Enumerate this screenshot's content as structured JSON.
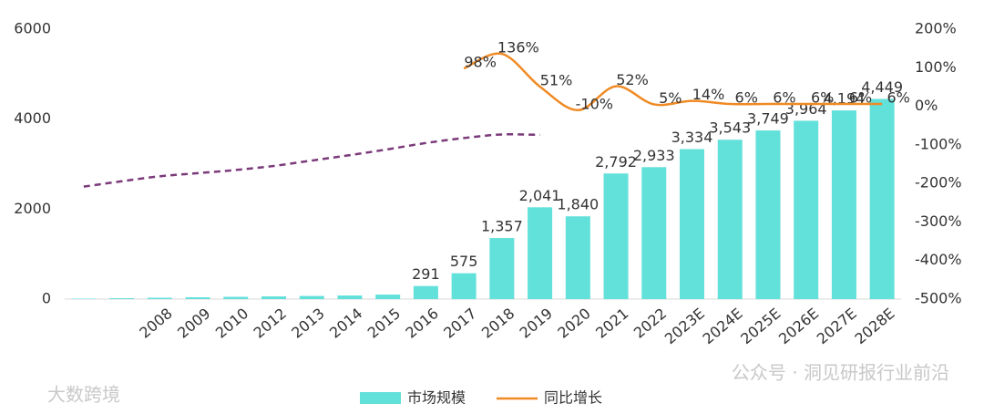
{
  "chart_data": {
    "type": "bar",
    "categories": [
      null,
      null,
      "2008",
      "2009",
      "2010",
      "2012",
      "2013",
      "2014",
      "2015",
      "2016",
      "2017",
      "2018",
      "2019",
      "2020",
      "2021",
      "2022",
      "2023E",
      "2024E",
      "2025E",
      "2026E",
      "2027E",
      "2028E"
    ],
    "series": [
      {
        "name": "市场规模",
        "type": "bar",
        "color": "#62e0da",
        "values": [
          10,
          20,
          30,
          40,
          50,
          60,
          70,
          80,
          100,
          291,
          575,
          1357,
          2041,
          1840,
          2792,
          2933,
          3334,
          3543,
          3749,
          3964,
          4194,
          4449
        ],
        "value_labels": [
          null,
          null,
          null,
          null,
          null,
          null,
          null,
          null,
          null,
          "291",
          "575",
          "1,357",
          "2,041",
          "1,840",
          "2,792",
          "2,933",
          "3,334",
          "3,543",
          "3,749",
          "3,964",
          "4,194",
          "4,449"
        ]
      },
      {
        "name": "同比增长",
        "type": "line",
        "axis": "y2",
        "color": "#f08a24",
        "values": [
          null,
          null,
          null,
          null,
          null,
          null,
          null,
          null,
          null,
          null,
          98,
          136,
          51,
          -10,
          52,
          5,
          14,
          6,
          6,
          6,
          6,
          6
        ],
        "value_labels": [
          null,
          null,
          null,
          null,
          null,
          null,
          null,
          null,
          null,
          null,
          "98%",
          "136%",
          "51%",
          "-10%",
          "52%",
          "5%",
          "14%",
          "6%",
          "6%",
          "6%",
          "6%",
          "6%"
        ]
      },
      {
        "type": "line",
        "dashed": true,
        "color": "#7b3a7a",
        "values": [
          2500,
          2620,
          2730,
          2800,
          2870,
          2960,
          3080,
          3200,
          3330,
          3470,
          3580,
          3660,
          3650,
          null,
          null,
          null,
          null,
          null,
          null,
          null,
          null,
          null
        ]
      }
    ],
    "ylim": [
      0,
      6000
    ],
    "yticks": [
      0,
      2000,
      4000,
      6000
    ],
    "y2lim": [
      -500,
      200
    ],
    "y2ticks": [
      {
        "value": -500,
        "label": "-500%"
      },
      {
        "value": -400,
        "label": "-400%"
      },
      {
        "value": -300,
        "label": "-300%"
      },
      {
        "value": -200,
        "label": "-200%"
      },
      {
        "value": -100,
        "label": "-100%"
      },
      {
        "value": 0,
        "label": "0%"
      },
      {
        "value": 100,
        "label": "100%"
      },
      {
        "value": 200,
        "label": "200%"
      }
    ],
    "legend": "bottom",
    "annotations": [
      "公众号 · 洞见研报行业前沿",
      "大数跨境"
    ]
  }
}
